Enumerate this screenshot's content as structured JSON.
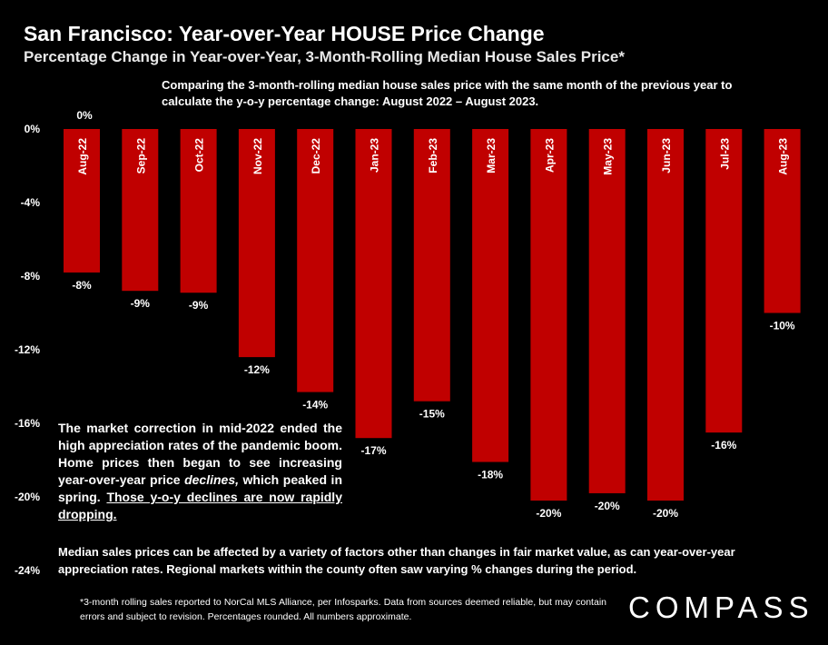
{
  "header": {
    "title": "San Francisco: Year-over-Year HOUSE Price Change",
    "subtitle": "Percentage Change in Year-over-Year, 3-Month-Rolling Median House Sales Price*",
    "note": "Comparing the 3-month-rolling median house sales price with the same month of the previous year to calculate the y-o-y percentage change: August 2022 – August 2023."
  },
  "callout": {
    "part1": "The market correction in mid-2022 ended the high appreciation rates of the pandemic boom.  Home prices then began to see increasing year-over-year price ",
    "italic": "declines,",
    "part2": " which peaked in spring. ",
    "underlined": "Those y-o-y declines are now rapidly dropping."
  },
  "bottom_note": "Median sales prices can be affected by a variety of factors other than changes in fair market value, as can year-over-year appreciation rates. Regional markets within the county often saw varying % changes during the period.",
  "footnote": "*3-month rolling sales reported to NorCal MLS Alliance, per Infosparks. Data from sources deemed reliable, but may contain errors and subject to revision. Percentages rounded. All numbers approximate.",
  "logo": "COMPASS",
  "top_label": "0%",
  "colors": {
    "bar": "#c00000",
    "background": "#000000",
    "text": "#ffffff"
  },
  "chart_data": {
    "type": "bar",
    "categories": [
      "Aug-22",
      "Sep-22",
      "Oct-22",
      "Nov-22",
      "Dec-22",
      "Jan-23",
      "Feb-23",
      "Mar-23",
      "Apr-23",
      "May-23",
      "Jun-23",
      "Jul-23",
      "Aug-23"
    ],
    "values": [
      -7.8,
      -8.8,
      -8.9,
      -12.4,
      -14.3,
      -16.8,
      -14.8,
      -18.1,
      -20.2,
      -19.8,
      -20.2,
      -16.5,
      -10.0
    ],
    "data_labels": [
      "-8%",
      "-9%",
      "-9%",
      "-12%",
      "-14%",
      "-17%",
      "-15%",
      "-18%",
      "-20%",
      "-20%",
      "-20%",
      "-16%",
      "-10%"
    ],
    "yticks": [
      "0%",
      "-4%",
      "-8%",
      "-12%",
      "-16%",
      "-20%",
      "-24%"
    ],
    "ylim": [
      -24,
      0
    ],
    "grid": false
  }
}
